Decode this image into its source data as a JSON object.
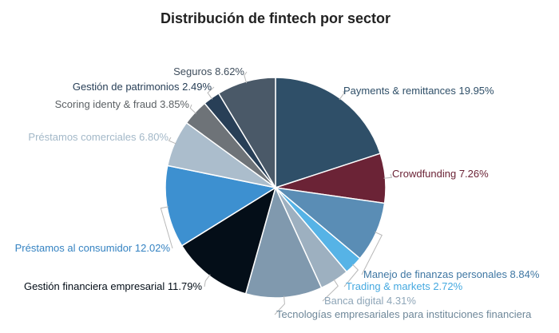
{
  "chart_data": {
    "type": "pie",
    "title": "Distribución de fintech por sector",
    "slices": [
      {
        "label": "Payments & remittances 19.95%",
        "value": 19.95,
        "color": "#2F4F68",
        "label_color": "#2F4F68"
      },
      {
        "label": "Crowdfunding 7.26%",
        "value": 7.26,
        "color": "#6B2336",
        "label_color": "#6B2336"
      },
      {
        "label": "Manejo de finanzas personales 8.84%",
        "value": 8.84,
        "color": "#5A8DB5",
        "label_color": "#3F77A3"
      },
      {
        "label": "Trading & markets 2.72%",
        "value": 2.72,
        "color": "#56B3E6",
        "label_color": "#45A9E0"
      },
      {
        "label": "Banca digital 4.31%",
        "value": 4.31,
        "color": "#9DB0C0",
        "label_color": "#8FA6B8"
      },
      {
        "label": "Tecnologías empresariales para instituciones financiera",
        "value": 11.19,
        "color": "#8099AE",
        "label_color": "#6E8799"
      },
      {
        "label": "Gestión financiera empresarial 11.79%",
        "value": 11.79,
        "color": "#040E18",
        "label_color": "#040E18"
      },
      {
        "label": "Préstamos al consumidor 12.02%",
        "value": 12.02,
        "color": "#3D90D0",
        "label_color": "#3583C2"
      },
      {
        "label": "Préstamos comerciales 6.80%",
        "value": 6.8,
        "color": "#ABBDCC",
        "label_color": "#A3B8C8"
      },
      {
        "label": "Scoring identy & fraud 3.85%",
        "value": 3.85,
        "color": "#6E7378",
        "label_color": "#5C6165"
      },
      {
        "label": "Gestión de patrimonios 2.49%",
        "value": 2.49,
        "color": "#283F57",
        "label_color": "#283F57"
      },
      {
        "label": "Seguros 8.62%",
        "value": 8.62,
        "color": "#4A5968",
        "label_color": "#3E4D5C"
      }
    ]
  }
}
